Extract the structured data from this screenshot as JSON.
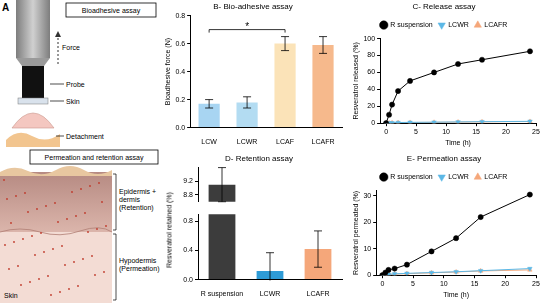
{
  "diagram": {
    "letter": "A",
    "bioadhesive_title": "Bioadhesive assay",
    "force": "Force",
    "probe": "Probe",
    "skin": "Skin",
    "detachment": "Detachment",
    "permeation_title": "Permeation and retention assay",
    "layer_upper": [
      "Epidermis +",
      "dermis",
      "(Retention)"
    ],
    "layer_lower": [
      "Hypodermis",
      "(Permeation)"
    ],
    "tissue": "Skin"
  },
  "chart_data": [
    {
      "type": "bar",
      "title": "B- Bio-adhesive assay",
      "y_label": "Bioadhesive force (N)",
      "categories": [
        "LCW",
        "LCWR",
        "LCAF",
        "LCAFR"
      ],
      "values": [
        0.17,
        0.18,
        0.6,
        0.59
      ],
      "errors": [
        0.03,
        0.04,
        0.05,
        0.06
      ],
      "colors": [
        "#a8d5f2",
        "#b3dcf2",
        "#fbe3b8",
        "#f6b98c"
      ],
      "ylim": [
        0,
        0.8
      ],
      "yticks": [
        {
          "value": 0,
          "label": "0.0"
        },
        0.2,
        0.4,
        0.6,
        0.8
      ],
      "grid": false,
      "significance": {
        "from": "LCW",
        "to": "LCAF",
        "label": "*"
      }
    },
    {
      "type": "line",
      "title": "C- Release assay",
      "x_label": "Time (h)",
      "y_label": "Resveratrol released (%)",
      "x": [
        0,
        0.5,
        1,
        2,
        4,
        8,
        12,
        16,
        24
      ],
      "series": [
        {
          "name": "R suspension",
          "color": "#000000",
          "marker": "circle",
          "line_style": "solid",
          "values": [
            0,
            10,
            22,
            38,
            50,
            60,
            70,
            75,
            85
          ]
        },
        {
          "name": "LCWR",
          "color": "#5cb8e6",
          "marker": "triangle_down",
          "line_style": "solid",
          "values": [
            0,
            0.3,
            0.5,
            0.8,
            1,
            1.2,
            1.5,
            1.8,
            2.2
          ]
        },
        {
          "name": "LCAFR",
          "color": "#f5a77a",
          "marker": "triangle",
          "line_style": "solid",
          "values": [
            0,
            0.2,
            0.4,
            0.6,
            0.8,
            1,
            1.3,
            1.6,
            2
          ]
        }
      ],
      "xlim": [
        -1,
        25
      ],
      "xticks": [
        0,
        5,
        10,
        15,
        20,
        25
      ],
      "ylim": [
        0,
        100
      ],
      "yticks": [
        0,
        20,
        40,
        60,
        80,
        100
      ],
      "grid": false,
      "legend": "top"
    },
    {
      "type": "bar",
      "title": "D- Retention assay",
      "y_label": "Resveratrol retained (%)",
      "categories": [
        "R suspension",
        "LCWR",
        "LCAFR"
      ],
      "values": [
        9.1,
        0.12,
        0.42
      ],
      "errors": [
        0.5,
        0.25,
        0.25
      ],
      "colors": [
        "#3c3c3c",
        "#2e9bd6",
        "#f5a77a"
      ],
      "axis_segments": [
        {
          "ylim": [
            8.6,
            9.6
          ],
          "yticks": [
            8.8,
            9.2
          ]
        },
        {
          "ylim": [
            0,
            0.9
          ],
          "yticks": [
            {
              "value": 0,
              "label": "0.0"
            },
            0.4,
            0.8
          ]
        }
      ],
      "grid": false
    },
    {
      "type": "line",
      "title": "E- Permeation assay",
      "x_label": "Time (h)",
      "y_label": "Resveratrol permeated (%)",
      "x": [
        0,
        0.5,
        1,
        2,
        4,
        8,
        12,
        16,
        24
      ],
      "series": [
        {
          "name": "R suspension",
          "color": "#000000",
          "marker": "circle",
          "line_style": "solid",
          "values": [
            0,
            1,
            2,
            2.5,
            4,
            9,
            14,
            22,
            30.5
          ]
        },
        {
          "name": "LCWR",
          "color": "#5cb8e6",
          "marker": "triangle_down",
          "line_style": "solid",
          "values": [
            0,
            0.2,
            0.3,
            0.5,
            0.7,
            1,
            1.3,
            1.7,
            2.5
          ]
        },
        {
          "name": "LCAFR",
          "color": "#f5a77a",
          "marker": "triangle",
          "line_style": "solid",
          "values": [
            0,
            0.1,
            0.3,
            0.4,
            0.6,
            0.9,
            1.2,
            1.6,
            2
          ]
        }
      ],
      "xlim": [
        -1,
        25
      ],
      "xticks": [
        0,
        5,
        10,
        15,
        20,
        25
      ],
      "ylim": [
        0,
        32
      ],
      "yticks": [
        0,
        10,
        20,
        30
      ],
      "grid": false,
      "legend": "top"
    }
  ]
}
